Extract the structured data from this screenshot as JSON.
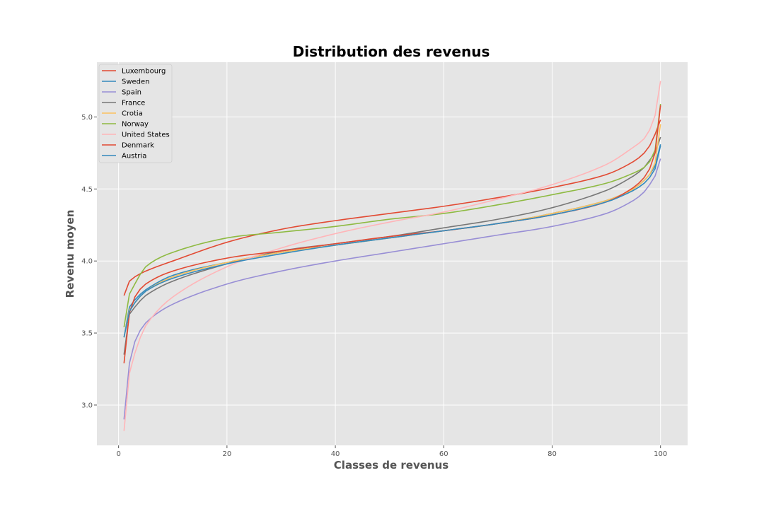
{
  "chart_data": {
    "type": "line",
    "title": "Distribution des revenus",
    "xlabel": "Classes de revenus",
    "ylabel": "Revenu moyen",
    "xlim": [
      -4,
      105
    ],
    "ylim": [
      2.72,
      5.38
    ],
    "xticks": [
      0,
      20,
      40,
      60,
      80,
      100
    ],
    "yticks": [
      3.0,
      3.5,
      4.0,
      4.5,
      5.0
    ],
    "grid": true,
    "legend": "top-left",
    "x_range": [
      1,
      100
    ],
    "control_x": [
      1,
      2,
      3,
      5,
      10,
      20,
      30,
      40,
      50,
      60,
      70,
      80,
      90,
      95,
      97,
      98,
      99,
      100
    ],
    "series": [
      {
        "name": "Luxembourg",
        "color": "#E24A33",
        "values": [
          3.76,
          3.86,
          3.89,
          3.93,
          4.0,
          4.13,
          4.22,
          4.28,
          4.33,
          4.38,
          4.44,
          4.51,
          4.6,
          4.69,
          4.75,
          4.8,
          4.88,
          4.98
        ]
      },
      {
        "name": "Sweden",
        "color": "#348ABD",
        "values": [
          3.47,
          3.68,
          3.73,
          3.8,
          3.9,
          3.99,
          4.06,
          4.11,
          4.16,
          4.21,
          4.26,
          4.33,
          4.42,
          4.5,
          4.56,
          4.6,
          4.66,
          4.81
        ]
      },
      {
        "name": "Spain",
        "color": "#988ED5",
        "values": [
          2.9,
          3.29,
          3.44,
          3.57,
          3.7,
          3.84,
          3.93,
          4.0,
          4.06,
          4.12,
          4.18,
          4.24,
          4.33,
          4.42,
          4.48,
          4.53,
          4.59,
          4.71
        ]
      },
      {
        "name": "France",
        "color": "#777777",
        "values": [
          3.35,
          3.63,
          3.68,
          3.76,
          3.86,
          3.98,
          4.07,
          4.12,
          4.17,
          4.23,
          4.29,
          4.37,
          4.49,
          4.59,
          4.65,
          4.7,
          4.75,
          4.86
        ]
      },
      {
        "name": "Crotia",
        "color": "#FBC15E",
        "values": [
          3.47,
          3.66,
          3.71,
          3.79,
          3.89,
          3.99,
          4.06,
          4.11,
          4.16,
          4.21,
          4.26,
          4.33,
          4.42,
          4.5,
          4.56,
          4.6,
          4.68,
          4.95
        ]
      },
      {
        "name": "Norway",
        "color": "#8EBA42",
        "values": [
          3.54,
          3.77,
          3.84,
          3.96,
          4.06,
          4.16,
          4.2,
          4.24,
          4.29,
          4.33,
          4.39,
          4.46,
          4.54,
          4.61,
          4.65,
          4.69,
          4.77,
          5.09
        ]
      },
      {
        "name": "United States",
        "color": "#FFB5B8",
        "values": [
          2.82,
          3.22,
          3.36,
          3.55,
          3.75,
          3.96,
          4.09,
          4.19,
          4.27,
          4.34,
          4.43,
          4.53,
          4.67,
          4.79,
          4.85,
          4.91,
          5.01,
          5.25
        ]
      },
      {
        "name": "Denmark",
        "color": "#E24A33",
        "values": [
          3.29,
          3.64,
          3.75,
          3.84,
          3.93,
          4.02,
          4.07,
          4.12,
          4.17,
          4.21,
          4.26,
          4.32,
          4.41,
          4.51,
          4.58,
          4.64,
          4.75,
          5.08
        ]
      },
      {
        "name": "Austria",
        "color": "#348ABD",
        "values": [
          3.47,
          3.65,
          3.71,
          3.79,
          3.88,
          3.98,
          4.05,
          4.11,
          4.16,
          4.21,
          4.26,
          4.32,
          4.41,
          4.49,
          4.54,
          4.58,
          4.64,
          4.8
        ]
      }
    ]
  }
}
